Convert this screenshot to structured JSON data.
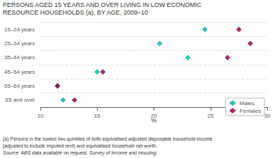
{
  "chart_data": {
    "type": "scatter",
    "title": "PERSONS AGED 15 YEARS AND OVER LIVING IN LOW ECONOMIC",
    "subtitle": "RESOURCE HOUSEHOLDS (a), BY AGE, 2009–10",
    "categories": [
      "15–24 years",
      "25–34 years",
      "35–44 years",
      "45–54 years",
      "55–64 years",
      "65 and over"
    ],
    "orientation": "horizontal",
    "series": [
      {
        "name": "Males",
        "color": "#00B0A0",
        "marker": "diamond",
        "values": [
          24.5,
          20.5,
          23.0,
          15.0,
          11.5,
          12.0
        ]
      },
      {
        "name": "Females",
        "color": "#800040",
        "marker": "diamond",
        "values": [
          27.5,
          28.5,
          26.5,
          15.5,
          11.5,
          13.0
        ]
      }
    ],
    "xlim": [
      10,
      30
    ],
    "xticks": [
      10,
      15,
      20,
      25,
      30
    ],
    "xlabel": "%",
    "grid": "y",
    "legend": "lower right",
    "annotations": [
      "(a) Persons in the lowest two quintiles of both equivalised adjusted disposable household income",
      "(adjusted to include imputed rent) and equivalised household net worth.",
      "Source: ABS data available on request, Survey of Income and Housing."
    ]
  }
}
